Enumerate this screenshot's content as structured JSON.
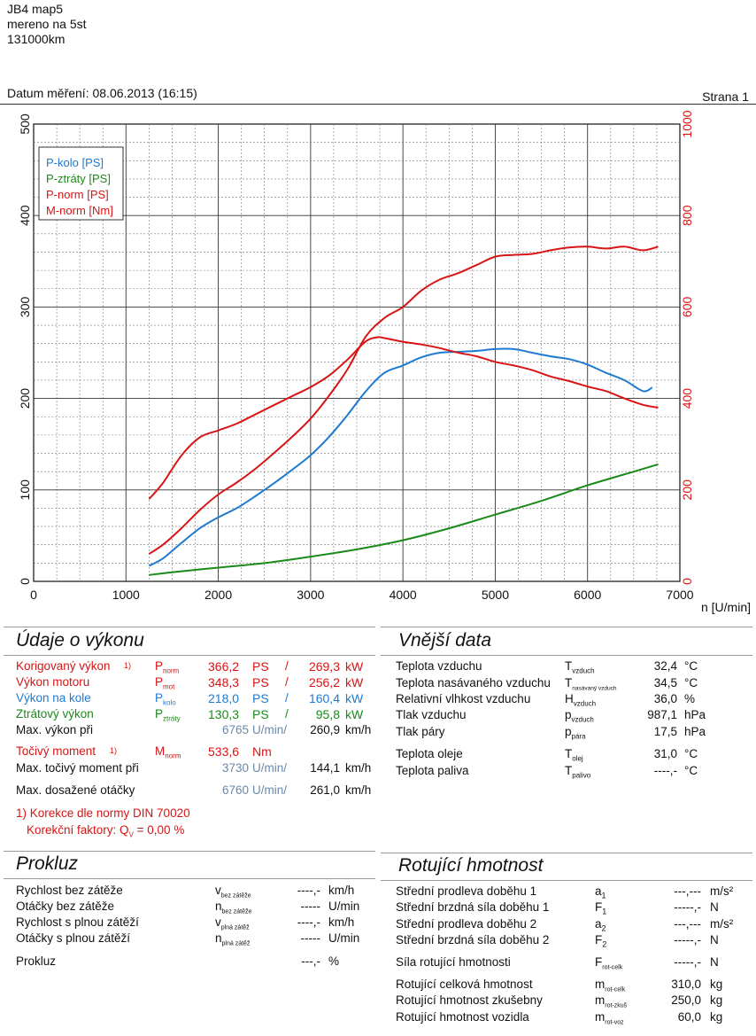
{
  "header": {
    "line1": "JB4 map5",
    "line2": "mereno na 5st",
    "line3": "131000km",
    "date": "Datum měření: 08.06.2013 (16:15)",
    "page": "Strana 1"
  },
  "chart_data": {
    "type": "line",
    "x_ticks": [
      "0",
      "1000",
      "2000",
      "3000",
      "4000",
      "5000",
      "6000",
      "7000"
    ],
    "y_left_ticks": [
      "0",
      "100",
      "200",
      "300",
      "400",
      "500"
    ],
    "y_right_ticks": [
      "0",
      "200",
      "400",
      "600",
      "800",
      "1000"
    ],
    "xlabel": "n [U/min]",
    "xlim": [
      0,
      7000
    ],
    "ylim_left": [
      0,
      500
    ],
    "ylim_right": [
      0,
      1000
    ],
    "grid": true,
    "legend_position": "top-left",
    "series": [
      {
        "name": "P-kolo [PS]",
        "color": "#1f7ad0",
        "axis": "left",
        "x": [
          1250,
          1400,
          1600,
          1800,
          2000,
          2200,
          2400,
          2600,
          2800,
          3000,
          3200,
          3400,
          3600,
          3800,
          4000,
          4200,
          4400,
          4600,
          4800,
          5000,
          5200,
          5400,
          5600,
          5800,
          6000,
          6200,
          6400,
          6600,
          6700
        ],
        "y": [
          17,
          25,
          42,
          58,
          70,
          80,
          93,
          107,
          122,
          138,
          158,
          182,
          208,
          228,
          236,
          245,
          250,
          251,
          252,
          254,
          254,
          250,
          246,
          243,
          237,
          228,
          220,
          208,
          212
        ]
      },
      {
        "name": "P-ztráty [PS]",
        "color": "#1a8a1a",
        "axis": "left",
        "x": [
          1250,
          1500,
          2000,
          2500,
          3000,
          3500,
          4000,
          4500,
          5000,
          5500,
          6000,
          6500,
          6765
        ],
        "y": [
          7,
          10,
          15,
          20,
          27,
          35,
          45,
          58,
          73,
          88,
          105,
          120,
          128
        ]
      },
      {
        "name": "P-norm [PS]",
        "color": "#d81414",
        "axis": "left",
        "x": [
          1250,
          1400,
          1600,
          1800,
          2000,
          2200,
          2400,
          2600,
          2800,
          3000,
          3200,
          3400,
          3600,
          3800,
          4000,
          4200,
          4400,
          4600,
          4800,
          5000,
          5200,
          5400,
          5600,
          5800,
          6000,
          6200,
          6400,
          6600,
          6765
        ],
        "y": [
          30,
          40,
          58,
          78,
          95,
          108,
          123,
          140,
          158,
          178,
          203,
          232,
          268,
          288,
          300,
          318,
          330,
          337,
          346,
          355,
          357,
          358,
          362,
          365,
          366,
          364,
          366,
          362,
          366
        ]
      },
      {
        "name": "M-norm [Nm]",
        "color": "#d81414",
        "axis": "right",
        "x": [
          1250,
          1400,
          1600,
          1800,
          2000,
          2200,
          2400,
          2600,
          2800,
          3000,
          3200,
          3400,
          3600,
          3730,
          3800,
          4000,
          4200,
          4400,
          4600,
          4800,
          5000,
          5200,
          5400,
          5600,
          5800,
          6000,
          6200,
          6400,
          6600,
          6765
        ],
        "y": [
          180,
          215,
          275,
          315,
          330,
          345,
          365,
          385,
          405,
          425,
          450,
          485,
          525,
          534,
          532,
          524,
          518,
          510,
          500,
          492,
          480,
          472,
          462,
          448,
          438,
          426,
          416,
          400,
          386,
          380
        ]
      }
    ]
  },
  "vykon": {
    "title": "Údaje o výkonu",
    "rows": [
      {
        "label": "Korigovaný výkon",
        "foot": "1)",
        "sym": "P",
        "sub": "norm",
        "v1": "366,2",
        "u1": "PS",
        "sep": "/",
        "v2": "269,3",
        "u2": "kW"
      },
      {
        "label": "Výkon motoru",
        "foot": "",
        "sym": "P",
        "sub": "mot",
        "v1": "348,3",
        "u1": "PS",
        "sep": "/",
        "v2": "256,2",
        "u2": "kW"
      },
      {
        "label": "Výkon na kole",
        "foot": "",
        "sym": "P",
        "sub": "kolo",
        "v1": "218,0",
        "u1": "PS",
        "sep": "/",
        "v2": "160,4",
        "u2": "kW"
      },
      {
        "label": "Ztrátový výkon",
        "foot": "",
        "sym": "P",
        "sub": "ztráty",
        "v1": "130,3",
        "u1": "PS",
        "sep": "/",
        "v2": "95,8",
        "u2": "kW"
      }
    ],
    "max_vykon": {
      "label": "Max. výkon při",
      "rpm": "6765",
      "unit": "U/min/",
      "speed": "260,9",
      "speed_unit": "km/h"
    },
    "moment": {
      "label": "Točivý moment",
      "foot": "1)",
      "sym": "M",
      "sub": "norm",
      "value": "533,6",
      "unit": "Nm"
    },
    "max_moment": {
      "label": "Max. točivý moment při",
      "rpm": "3730",
      "unit": "U/min/",
      "speed": "144,1",
      "speed_unit": "km/h"
    },
    "max_otacky": {
      "label": "Max. dosažené otáčky",
      "rpm": "6760",
      "unit": "U/min/",
      "speed": "261,0",
      "speed_unit": "km/h"
    },
    "note1": "1) Korekce dle normy DIN 70020",
    "note2": "Korekční faktory: Q",
    "note2_sub": "V",
    "note2_val": "=   0,00 %"
  },
  "vnejsi": {
    "title": "Vnější data",
    "rows": [
      {
        "label": "Teplota vzduchu",
        "sym": "T",
        "sub": "vzduch",
        "value": "32,4",
        "unit": "°C"
      },
      {
        "label": "Teplota nasávaného vzduchu",
        "sym": "T",
        "sub": "nasávaný vzduch",
        "value": "34,5",
        "unit": "°C"
      },
      {
        "label": "Relativní vlhkost vzduchu",
        "sym": "H",
        "sub": "vzduch",
        "value": "36,0",
        "unit": "%"
      },
      {
        "label": "Tlak vzduchu",
        "sym": "p",
        "sub": "vzduch",
        "value": "987,1",
        "unit": "hPa"
      },
      {
        "label": "Tlak páry",
        "sym": "p",
        "sub": "pára",
        "value": "17,5",
        "unit": "hPa"
      },
      {
        "label": "Teplota oleje",
        "sym": "T",
        "sub": "olej",
        "value": "31,0",
        "unit": "°C"
      },
      {
        "label": "Teplota paliva",
        "sym": "T",
        "sub": "palivo",
        "value": "----,-",
        "unit": "°C"
      }
    ]
  },
  "prokluz": {
    "title": "Prokluz",
    "rows": [
      {
        "label": "Rychlost bez zátěže",
        "sym": "v",
        "sub": "bez zátěže",
        "value": "----,-",
        "unit": "km/h"
      },
      {
        "label": "Otáčky bez zátěže",
        "sym": "n",
        "sub": "bez zátěže",
        "value": "-----",
        "unit": "U/min"
      },
      {
        "label": "Rychlost s plnou zátěží",
        "sym": "v",
        "sub": "plná zátěž",
        "value": "----,-",
        "unit": "km/h"
      },
      {
        "label": "Otáčky s plnou zátěží",
        "sym": "n",
        "sub": "plná zátěž",
        "value": "-----",
        "unit": "U/min"
      },
      {
        "label": "Prokluz",
        "sym": "",
        "sub": "",
        "value": "---,-",
        "unit": "%"
      }
    ]
  },
  "rotujici": {
    "title": "Rotující hmotnost",
    "rows": [
      {
        "label": "Střední prodleva doběhu 1",
        "sym": "a",
        "sub": "1",
        "value": "---,---",
        "unit": "m/s²"
      },
      {
        "label": "Střední brzdná síla doběhu 1",
        "sym": "F",
        "sub": "1",
        "value": "-----,-",
        "unit": "N"
      },
      {
        "label": "Střední prodleva doběhu 2",
        "sym": "a",
        "sub": "2",
        "value": "---,---",
        "unit": "m/s²"
      },
      {
        "label": "Střední brzdná síla doběhu 2",
        "sym": "F",
        "sub": "2",
        "value": "-----,-",
        "unit": "N"
      },
      {
        "label": "Síla rotující hmotnosti",
        "sym": "F",
        "sub": "rot-celk",
        "value": "-----,-",
        "unit": "N"
      },
      {
        "label": "Rotující celková hmotnost",
        "sym": "m",
        "sub": "rot-celk",
        "value": "310,0",
        "unit": "kg"
      },
      {
        "label": "Rotující hmotnost zkušebny",
        "sym": "m",
        "sub": "rot-zkuš",
        "value": "250,0",
        "unit": "kg"
      },
      {
        "label": "Rotující hmotnost vozidla",
        "sym": "m",
        "sub": "rot-voz",
        "value": "60,0",
        "unit": "kg"
      }
    ]
  }
}
